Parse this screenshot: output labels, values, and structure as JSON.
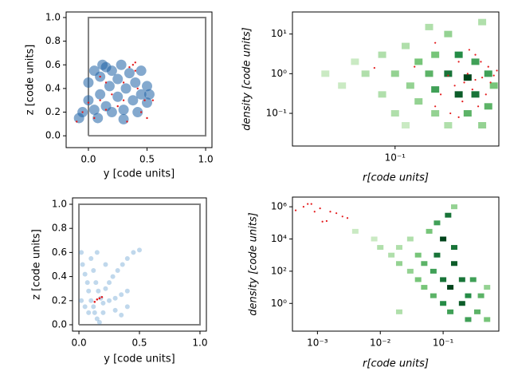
{
  "chart_data": [
    {
      "type": "scatter",
      "xlabel": "y [code units]",
      "ylabel": "z [code units]",
      "xlim": [
        -0.19,
        1.054
      ],
      "ylim": [
        -0.1,
        1.047
      ],
      "xscale": "linear",
      "yscale": "linear",
      "xticks": [
        {
          "value": 0,
          "label": "0.0"
        },
        0.5,
        {
          "value": 1,
          "label": "1.0"
        }
      ],
      "yticks": [
        {
          "value": 0,
          "label": "0.0"
        },
        0.2,
        0.4,
        0.6,
        0.8,
        {
          "value": 1,
          "label": "1.0"
        }
      ],
      "box": {
        "color": "#808080",
        "x": [
          0,
          1,
          1,
          0,
          0
        ],
        "y": [
          0,
          0,
          1,
          1,
          0
        ]
      },
      "series": [
        {
          "color": "#1f62a6",
          "x": [
            -0.05,
            0.0,
            0.0,
            0.05,
            0.05,
            0.1,
            0.1,
            0.12,
            0.15,
            0.18,
            0.2,
            0.2,
            0.25,
            0.25,
            0.28,
            0.3,
            0.32,
            0.35,
            0.38,
            0.4,
            0.42,
            0.45,
            0.45,
            0.5,
            0.5,
            0.52,
            -0.08,
            0.08,
            0.3,
            0.15
          ],
          "values": [
            0.2,
            0.3,
            0.45,
            0.55,
            0.22,
            0.35,
            0.5,
            0.6,
            0.25,
            0.42,
            0.55,
            0.2,
            0.33,
            0.48,
            0.6,
            0.22,
            0.4,
            0.53,
            0.3,
            0.45,
            0.2,
            0.35,
            0.55,
            0.28,
            0.42,
            0.35,
            0.15,
            0.15,
            0.14,
            0.58
          ]
        },
        {
          "color": "#e41a1c",
          "x": [
            -0.1,
            -0.05,
            0.0,
            0.05,
            0.1,
            0.15,
            0.2,
            0.25,
            0.3,
            0.35,
            0.38,
            0.4,
            0.42,
            0.45,
            0.48,
            0.5,
            0.55,
            0.1,
            0.15,
            0.3,
            0.33,
            0.4
          ],
          "values": [
            0.12,
            0.2,
            0.28,
            0.15,
            0.3,
            0.22,
            0.35,
            0.25,
            0.45,
            0.58,
            0.6,
            0.55,
            0.4,
            0.2,
            0.3,
            0.15,
            0.3,
            0.5,
            0.45,
            0.3,
            0.12,
            0.62
          ]
        }
      ]
    },
    {
      "type": "hist2d",
      "xlabel": "r[code units]",
      "ylabel": "density [code units]",
      "xlim": [
        0.017,
        0.6
      ],
      "ylim": [
        0.015,
        36
      ],
      "xscale": "log",
      "yscale": "log",
      "cmap": "Greens",
      "xticks": [
        {
          "value": 0.1,
          "label": "10⁻¹"
        }
      ],
      "yticks": [
        {
          "value": 0.1,
          "label": "10⁻¹"
        },
        {
          "value": 1,
          "label": "10⁰"
        },
        {
          "value": 10,
          "label": "10¹"
        }
      ],
      "cells": {
        "x": [
          0.03,
          0.04,
          0.05,
          0.06,
          0.08,
          0.08,
          0.1,
          0.1,
          0.12,
          0.13,
          0.15,
          0.15,
          0.18,
          0.2,
          0.2,
          0.2,
          0.25,
          0.25,
          0.25,
          0.3,
          0.3,
          0.35,
          0.35,
          0.4,
          0.4,
          0.45,
          0.45,
          0.5,
          0.5,
          0.55,
          0.18,
          0.12
        ],
        "y": [
          1,
          0.5,
          2,
          1,
          0.3,
          3,
          1,
          0.1,
          5,
          0.5,
          2,
          0.2,
          1,
          0.1,
          3,
          0.4,
          10,
          1,
          0.05,
          0.3,
          3,
          0.8,
          0.1,
          2,
          0.3,
          20,
          0.05,
          1,
          0.15,
          0.5,
          15,
          0.05
        ],
        "counts": [
          1,
          1,
          1,
          2,
          2,
          2,
          3,
          2,
          2,
          3,
          4,
          3,
          5,
          3,
          4,
          6,
          3,
          8,
          2,
          9,
          7,
          10,
          5,
          6,
          8,
          2,
          3,
          6,
          5,
          4,
          2,
          1
        ]
      },
      "series": [
        {
          "color": "#e41a1c",
          "x": [
            0.14,
            0.07,
            0.2,
            0.25,
            0.28,
            0.3,
            0.32,
            0.35,
            0.38,
            0.4,
            0.42,
            0.45,
            0.48,
            0.5,
            0.52,
            0.22,
            0.26,
            0.3,
            0.36,
            0.4,
            0.44,
            0.55,
            0.58,
            0.2,
            0.33
          ],
          "values": [
            1.5,
            1.4,
            6,
            0.9,
            0.5,
            2,
            0.2,
            1,
            0.4,
            3,
            0.15,
            0.8,
            0.3,
            1.5,
            0.6,
            0.3,
            0.1,
            0.08,
            4,
            0.7,
            2,
            0.9,
            1.2,
            0.15,
            0.6
          ]
        }
      ]
    },
    {
      "type": "scatter",
      "xlabel": "y [code units]",
      "ylabel": "z [code units]",
      "xlim": [
        -0.053,
        1.053
      ],
      "ylim": [
        -0.053,
        1.053
      ],
      "xscale": "linear",
      "yscale": "linear",
      "xticks": [
        {
          "value": 0,
          "label": "0.0"
        },
        0.5,
        {
          "value": 1,
          "label": "1.0"
        }
      ],
      "yticks": [
        {
          "value": 0,
          "label": "0.0"
        },
        0.2,
        0.4,
        0.6,
        0.8,
        {
          "value": 1,
          "label": "1.0"
        }
      ],
      "box": {
        "color": "#808080",
        "x": [
          0,
          1,
          1,
          0,
          0
        ],
        "y": [
          0,
          0,
          1,
          1,
          0
        ]
      },
      "series": [
        {
          "color": "#2f7fc1",
          "x": [
            0.02,
            0.03,
            0.05,
            0.07,
            0.08,
            0.1,
            0.12,
            0.13,
            0.15,
            0.17,
            0.1,
            0.12,
            0.14,
            0.16,
            0.18,
            0.2,
            0.22,
            0.25,
            0.28,
            0.32,
            0.36,
            0.4,
            0.45,
            0.5,
            0.25,
            0.3,
            0.35,
            0.4,
            0.3,
            0.35,
            0.05,
            0.02,
            0.08,
            0.2,
            0.15,
            0.22,
            0.4
          ],
          "values": [
            0.6,
            0.5,
            0.42,
            0.35,
            0.28,
            0.2,
            0.15,
            0.1,
            0.05,
            0.02,
            0.55,
            0.45,
            0.35,
            0.28,
            0.22,
            0.18,
            0.3,
            0.35,
            0.4,
            0.45,
            0.5,
            0.55,
            0.6,
            0.62,
            0.2,
            0.22,
            0.25,
            0.28,
            0.12,
            0.08,
            0.15,
            0.2,
            0.1,
            0.1,
            0.6,
            0.5,
            0.15
          ]
        },
        {
          "color": "#e41a1c",
          "x": [
            0.13,
            0.15,
            0.17,
            0.19
          ],
          "values": [
            0.19,
            0.21,
            0.22,
            0.23
          ]
        }
      ]
    },
    {
      "type": "hist2d",
      "xlabel": "r[code units]",
      "ylabel": "density [code units]",
      "xlim": [
        0.0004,
        0.77
      ],
      "ylim": [
        0.019,
        4000000
      ],
      "xscale": "log",
      "yscale": "log",
      "cmap": "Greens",
      "xticks": [
        {
          "value": 0.001,
          "label": "10⁻³"
        },
        {
          "value": 0.01,
          "label": "10⁻²"
        },
        {
          "value": 0.1,
          "label": "10⁻¹"
        }
      ],
      "yticks": [
        {
          "value": 1,
          "label": "10⁰"
        },
        {
          "value": 100,
          "label": "10²"
        },
        {
          "value": 10000,
          "label": "10⁴"
        },
        {
          "value": 1000000,
          "label": "10⁶"
        }
      ],
      "cells": {
        "x": [
          0.004,
          0.008,
          0.01,
          0.015,
          0.02,
          0.02,
          0.03,
          0.03,
          0.04,
          0.04,
          0.05,
          0.05,
          0.06,
          0.07,
          0.07,
          0.08,
          0.08,
          0.1,
          0.1,
          0.1,
          0.12,
          0.13,
          0.13,
          0.15,
          0.15,
          0.2,
          0.2,
          0.25,
          0.25,
          0.3,
          0.35,
          0.4,
          0.5,
          0.5,
          0.15,
          0.02
        ],
        "y": [
          30000,
          10000,
          3000,
          1000,
          300,
          3000,
          100,
          10000,
          30,
          1000,
          10,
          300,
          30000,
          3,
          100,
          1000,
          100000,
          1,
          30,
          10000,
          300000,
          0.3,
          10,
          300,
          3000,
          1,
          30,
          0.1,
          3,
          30,
          0.3,
          3,
          0.1,
          10,
          1000000,
          0.3
        ],
        "counts": [
          1,
          1,
          2,
          2,
          3,
          2,
          3,
          2,
          4,
          4,
          4,
          5,
          4,
          5,
          6,
          8,
          6,
          7,
          8,
          10,
          8,
          6,
          10,
          9,
          8,
          9,
          8,
          6,
          7,
          6,
          5,
          5,
          4,
          3,
          3,
          2
        ]
      },
      "series": [
        {
          "color": "#e41a1c",
          "x": [
            0.00045,
            0.0006,
            0.0008,
            0.0009,
            0.0011,
            0.0012,
            0.0014,
            0.0016,
            0.002,
            0.0025,
            0.003,
            0.0007
          ],
          "values": [
            600000,
            1000000,
            1500000,
            500000,
            800000,
            120000,
            130000,
            500000,
            400000,
            250000,
            200000,
            1500000
          ]
        }
      ]
    }
  ]
}
